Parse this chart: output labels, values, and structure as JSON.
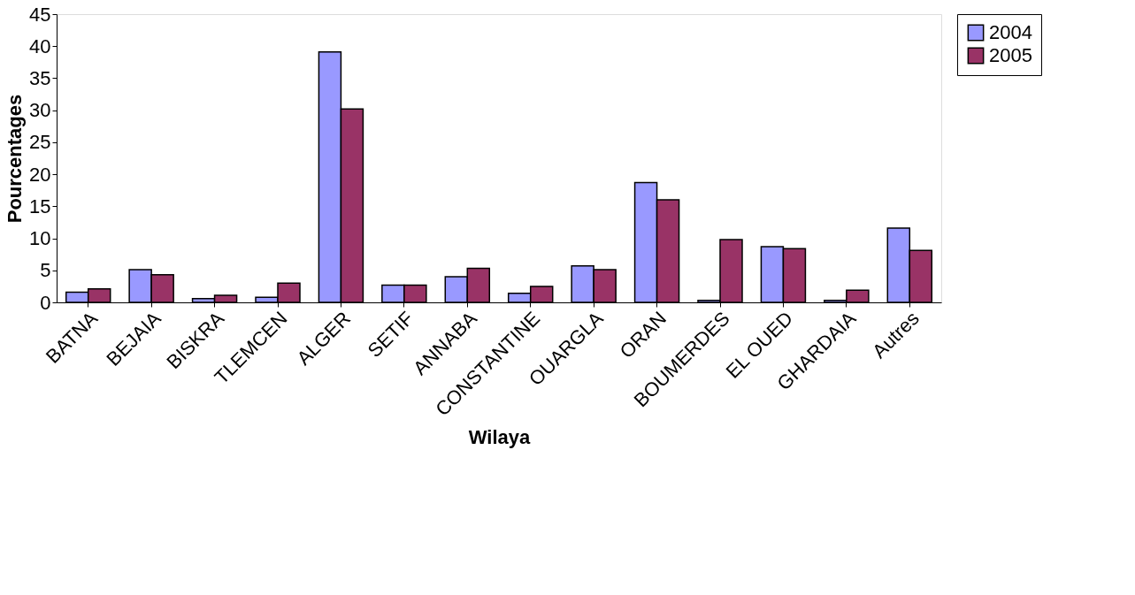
{
  "chart_data": {
    "type": "bar",
    "xlabel": "Wilaya",
    "ylabel": "Pourcentages",
    "categories": [
      "BATNA",
      "BEJAIA",
      "BISKRA",
      "TLEMCEN",
      "ALGER",
      "SETIF",
      "ANNABA",
      "CONSTANTINE",
      "OUARGLA",
      "ORAN",
      "BOUMERDES",
      "EL OUED",
      "GHARDAIA",
      "Autres"
    ],
    "series": [
      {
        "name": "2004",
        "color": "#9999ff",
        "values": [
          1.6,
          5.1,
          0.6,
          0.8,
          39.1,
          2.7,
          4.0,
          1.4,
          5.7,
          18.7,
          0.3,
          8.7,
          0.3,
          11.6
        ]
      },
      {
        "name": "2005",
        "color": "#993366",
        "values": [
          2.1,
          4.3,
          1.1,
          3.0,
          30.2,
          2.7,
          5.3,
          2.5,
          5.1,
          16.0,
          9.8,
          8.4,
          1.9,
          8.1
        ]
      }
    ],
    "ylim": [
      0,
      45
    ],
    "yticks": [
      0,
      5,
      10,
      15,
      20,
      25,
      30,
      35,
      40,
      45
    ],
    "grid": false,
    "legend": "right"
  }
}
